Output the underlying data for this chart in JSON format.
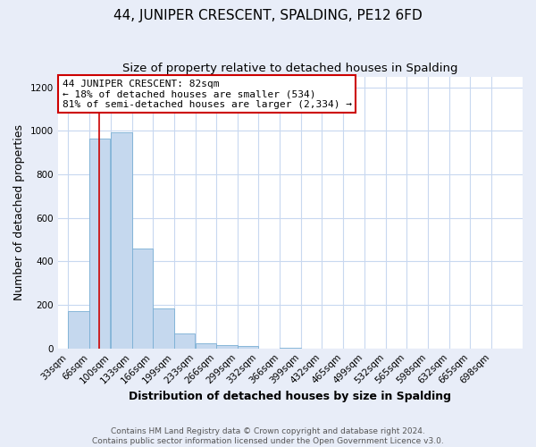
{
  "title": "44, JUNIPER CRESCENT, SPALDING, PE12 6FD",
  "subtitle": "Size of property relative to detached houses in Spalding",
  "xlabel": "Distribution of detached houses by size in Spalding",
  "ylabel": "Number of detached properties",
  "bin_labels": [
    "33sqm",
    "66sqm",
    "100sqm",
    "133sqm",
    "166sqm",
    "199sqm",
    "233sqm",
    "266sqm",
    "299sqm",
    "332sqm",
    "366sqm",
    "399sqm",
    "432sqm",
    "465sqm",
    "499sqm",
    "532sqm",
    "565sqm",
    "598sqm",
    "632sqm",
    "665sqm",
    "698sqm"
  ],
  "bin_edges": [
    33,
    66,
    100,
    133,
    166,
    199,
    233,
    266,
    299,
    332,
    366,
    399,
    432,
    465,
    499,
    532,
    565,
    598,
    632,
    665,
    698
  ],
  "bar_heights": [
    170,
    965,
    995,
    460,
    185,
    70,
    25,
    15,
    10,
    0,
    5,
    0,
    0,
    0,
    0,
    0,
    0,
    0,
    0,
    0
  ],
  "bar_color": "#c5d8ee",
  "bar_edge_color": "#7aafd4",
  "vline_color": "#cc0000",
  "vline_x": 82,
  "ylim": [
    0,
    1250
  ],
  "yticks": [
    0,
    200,
    400,
    600,
    800,
    1000,
    1200
  ],
  "annotation_text": "44 JUNIPER CRESCENT: 82sqm\n← 18% of detached houses are smaller (534)\n81% of semi-detached houses are larger (2,334) →",
  "annotation_box_color": "#ffffff",
  "annotation_box_edge": "#cc0000",
  "footer_line1": "Contains HM Land Registry data © Crown copyright and database right 2024.",
  "footer_line2": "Contains public sector information licensed under the Open Government Licence v3.0.",
  "fig_bg": "#e8edf8",
  "plot_bg": "#ffffff",
  "grid_color": "#c8d8f0",
  "title_fontsize": 11,
  "subtitle_fontsize": 9.5,
  "axis_label_fontsize": 9,
  "tick_fontsize": 7.5,
  "footer_fontsize": 6.5,
  "annot_fontsize": 8
}
